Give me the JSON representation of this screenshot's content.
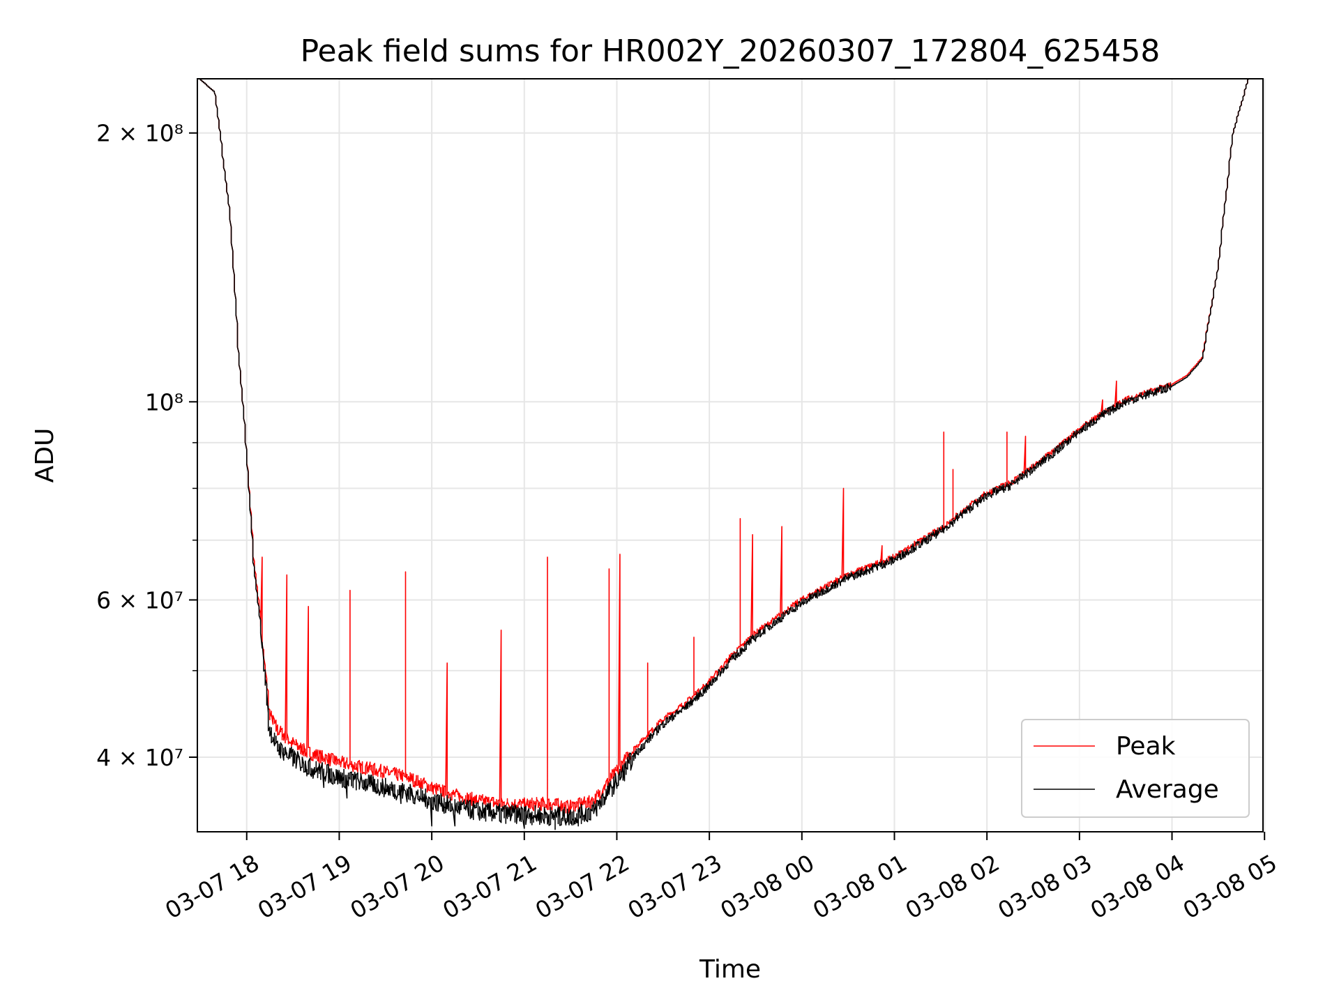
{
  "chart_data": {
    "type": "line",
    "title": "Peak field sums for HR002Y_20260307_172804_625458",
    "xlabel": "Time",
    "ylabel": "ADU",
    "y_scale": "log",
    "grid": true,
    "legend_position": "lower-right",
    "xlim": [
      "2026-03-07 17:28",
      "2026-03-08 04:59"
    ],
    "ylim": [
      33000000,
      230000000
    ],
    "x_ticks": [
      {
        "t": "2026-03-07 18:00",
        "label": "03-07 18"
      },
      {
        "t": "2026-03-07 19:00",
        "label": "03-07 19"
      },
      {
        "t": "2026-03-07 20:00",
        "label": "03-07 20"
      },
      {
        "t": "2026-03-07 21:00",
        "label": "03-07 21"
      },
      {
        "t": "2026-03-07 22:00",
        "label": "03-07 22"
      },
      {
        "t": "2026-03-07 23:00",
        "label": "03-07 23"
      },
      {
        "t": "2026-03-08 00:00",
        "label": "03-08 00"
      },
      {
        "t": "2026-03-08 01:00",
        "label": "03-08 01"
      },
      {
        "t": "2026-03-08 02:00",
        "label": "03-08 02"
      },
      {
        "t": "2026-03-08 03:00",
        "label": "03-08 03"
      },
      {
        "t": "2026-03-08 04:00",
        "label": "03-08 04"
      },
      {
        "t": "2026-03-08 05:00",
        "label": "03-08 05"
      }
    ],
    "y_ticks": [
      {
        "value": 200000000,
        "label": "2 × 10⁸"
      },
      {
        "value": 100000000,
        "label": "10⁸"
      },
      {
        "value": 60000000,
        "label": "6 × 10⁷"
      },
      {
        "value": 40000000,
        "label": "4 × 10⁷"
      }
    ],
    "y_minor_ticks": [
      30000000,
      50000000,
      70000000,
      80000000,
      90000000
    ],
    "series": [
      {
        "name": "Peak",
        "color": "#ff0000",
        "x": [
          "2026-03-07 17:30",
          "2026-03-07 17:40",
          "2026-03-07 17:50",
          "2026-03-07 17:55",
          "2026-03-07 18:00",
          "2026-03-07 18:05",
          "2026-03-07 18:10",
          "2026-03-07 18:15",
          "2026-03-07 18:20",
          "2026-03-07 18:30",
          "2026-03-07 18:40",
          "2026-03-07 18:50",
          "2026-03-07 19:00",
          "2026-03-07 19:15",
          "2026-03-07 19:30",
          "2026-03-07 19:45",
          "2026-03-07 20:00",
          "2026-03-07 20:15",
          "2026-03-07 20:30",
          "2026-03-07 20:45",
          "2026-03-07 21:00",
          "2026-03-07 21:15",
          "2026-03-07 21:30",
          "2026-03-07 21:45",
          "2026-03-07 22:00",
          "2026-03-07 22:15",
          "2026-03-07 22:30",
          "2026-03-07 22:45",
          "2026-03-07 23:00",
          "2026-03-07 23:15",
          "2026-03-07 23:30",
          "2026-03-07 23:45",
          "2026-03-08 00:00",
          "2026-03-08 00:15",
          "2026-03-08 00:30",
          "2026-03-08 00:45",
          "2026-03-08 01:00",
          "2026-03-08 01:15",
          "2026-03-08 01:30",
          "2026-03-08 01:45",
          "2026-03-08 02:00",
          "2026-03-08 02:15",
          "2026-03-08 02:30",
          "2026-03-08 02:45",
          "2026-03-08 03:00",
          "2026-03-08 03:15",
          "2026-03-08 03:30",
          "2026-03-08 03:45",
          "2026-03-08 04:00",
          "2026-03-08 04:10",
          "2026-03-08 04:20",
          "2026-03-08 04:30",
          "2026-03-08 04:40",
          "2026-03-08 04:50",
          "2026-03-08 04:57"
        ],
        "y": [
          230000000,
          222000000,
          160000000,
          115000000,
          90000000,
          67000000,
          56000000,
          45000000,
          43000000,
          41500000,
          40500000,
          40000000,
          39500000,
          39000000,
          38500000,
          38000000,
          37000000,
          36300000,
          35800000,
          35500000,
          35400000,
          35500000,
          35200000,
          35700000,
          38500000,
          41500000,
          44000000,
          46000000,
          48500000,
          52000000,
          55000000,
          57500000,
          60000000,
          62000000,
          64000000,
          65500000,
          67000000,
          69500000,
          72000000,
          75500000,
          79000000,
          81000000,
          84500000,
          88500000,
          93000000,
          97000000,
          100500000,
          102500000,
          104500000,
          107000000,
          112000000,
          140000000,
          200000000,
          230000000,
          230000000
        ],
        "spikes": [
          {
            "x": "2026-03-07 18:10",
            "y": 67000000
          },
          {
            "x": "2026-03-07 18:26",
            "y": 64000000
          },
          {
            "x": "2026-03-07 18:40",
            "y": 59000000
          },
          {
            "x": "2026-03-07 19:07",
            "y": 61500000
          },
          {
            "x": "2026-03-07 19:43",
            "y": 64500000
          },
          {
            "x": "2026-03-07 20:10",
            "y": 51000000
          },
          {
            "x": "2026-03-07 20:45",
            "y": 55500000
          },
          {
            "x": "2026-03-07 21:15",
            "y": 67000000
          },
          {
            "x": "2026-03-07 21:55",
            "y": 65000000
          },
          {
            "x": "2026-03-07 22:02",
            "y": 67500000
          },
          {
            "x": "2026-03-07 22:20",
            "y": 51000000
          },
          {
            "x": "2026-03-07 22:50",
            "y": 54500000
          },
          {
            "x": "2026-03-07 23:20",
            "y": 74000000
          },
          {
            "x": "2026-03-07 23:28",
            "y": 71000000
          },
          {
            "x": "2026-03-07 23:47",
            "y": 72500000
          },
          {
            "x": "2026-03-08 00:27",
            "y": 80000000
          },
          {
            "x": "2026-03-08 00:52",
            "y": 69000000
          },
          {
            "x": "2026-03-08 01:32",
            "y": 92500000
          },
          {
            "x": "2026-03-08 01:38",
            "y": 84000000
          },
          {
            "x": "2026-03-08 02:13",
            "y": 92500000
          },
          {
            "x": "2026-03-08 02:25",
            "y": 91500000
          },
          {
            "x": "2026-03-08 03:15",
            "y": 100500000
          },
          {
            "x": "2026-03-08 03:24",
            "y": 105500000
          }
        ]
      },
      {
        "name": "Average",
        "color": "#000000",
        "x": [
          "2026-03-07 17:30",
          "2026-03-07 17:40",
          "2026-03-07 17:50",
          "2026-03-07 17:55",
          "2026-03-07 18:00",
          "2026-03-07 18:05",
          "2026-03-07 18:10",
          "2026-03-07 18:15",
          "2026-03-07 18:20",
          "2026-03-07 18:30",
          "2026-03-07 18:40",
          "2026-03-07 18:50",
          "2026-03-07 19:00",
          "2026-03-07 19:15",
          "2026-03-07 19:30",
          "2026-03-07 19:45",
          "2026-03-07 20:00",
          "2026-03-07 20:15",
          "2026-03-07 20:30",
          "2026-03-07 20:45",
          "2026-03-07 21:00",
          "2026-03-07 21:15",
          "2026-03-07 21:30",
          "2026-03-07 21:45",
          "2026-03-07 22:00",
          "2026-03-07 22:15",
          "2026-03-07 22:30",
          "2026-03-07 22:45",
          "2026-03-07 23:00",
          "2026-03-07 23:15",
          "2026-03-07 23:30",
          "2026-03-07 23:45",
          "2026-03-08 00:00",
          "2026-03-08 00:15",
          "2026-03-08 00:30",
          "2026-03-08 00:45",
          "2026-03-08 01:00",
          "2026-03-08 01:15",
          "2026-03-08 01:30",
          "2026-03-08 01:45",
          "2026-03-08 02:00",
          "2026-03-08 02:15",
          "2026-03-08 02:30",
          "2026-03-08 02:45",
          "2026-03-08 03:00",
          "2026-03-08 03:15",
          "2026-03-08 03:30",
          "2026-03-08 03:45",
          "2026-03-08 04:00",
          "2026-03-08 04:10",
          "2026-03-08 04:20",
          "2026-03-08 04:30",
          "2026-03-08 04:40",
          "2026-03-08 04:50",
          "2026-03-08 04:57"
        ],
        "y": [
          230000000,
          222000000,
          160000000,
          115000000,
          90000000,
          66000000,
          55000000,
          43500000,
          41000000,
          40000000,
          39000000,
          38500000,
          38000000,
          37500000,
          37000000,
          36500000,
          35800000,
          35200000,
          34800000,
          34600000,
          34500000,
          34400000,
          34300000,
          34800000,
          37500000,
          40800000,
          43500000,
          45500000,
          48000000,
          51500000,
          54500000,
          57000000,
          59500000,
          61500000,
          63500000,
          65000000,
          66500000,
          69000000,
          71500000,
          75000000,
          78500000,
          80500000,
          84000000,
          88000000,
          92500000,
          96500000,
          100000000,
          102000000,
          104000000,
          106500000,
          111500000,
          140000000,
          200000000,
          230000000,
          230000000
        ],
        "dips": [
          {
            "x": "2026-03-07 18:50",
            "y": 37000000
          },
          {
            "x": "2026-03-07 19:05",
            "y": 36000000
          },
          {
            "x": "2026-03-07 19:40",
            "y": 35500000
          },
          {
            "x": "2026-03-07 20:00",
            "y": 33500000
          },
          {
            "x": "2026-03-07 20:15",
            "y": 33500000
          },
          {
            "x": "2026-03-07 20:45",
            "y": 33800000
          },
          {
            "x": "2026-03-07 21:00",
            "y": 33300000
          },
          {
            "x": "2026-03-07 21:20",
            "y": 33200000
          },
          {
            "x": "2026-03-07 21:35",
            "y": 33500000
          }
        ]
      }
    ]
  }
}
